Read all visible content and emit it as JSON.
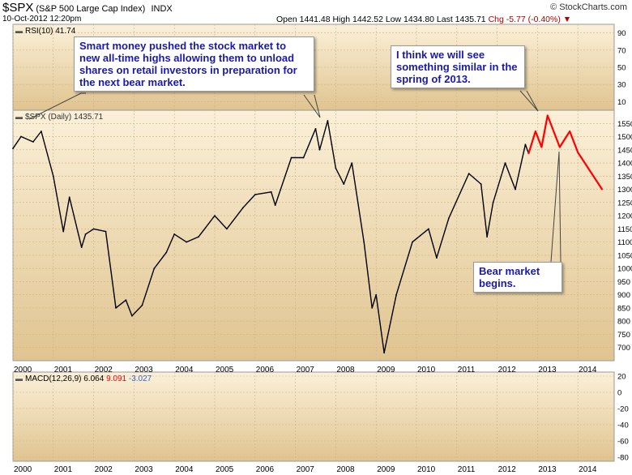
{
  "header": {
    "symbol": "$SPX",
    "index_name": "(S&P 500 Large Cap Index)",
    "exchange": "INDX",
    "datetime": "10-Oct-2012 12:20pm",
    "quote": "Open 1441.48  High 1442.52  Low 1434.80  Last 1435.71",
    "change": "Chg -5.77 (-0.40%)",
    "logo": "© StockCharts.com"
  },
  "annotations": {
    "top_left": "Smart money pushed the stock market to new all-time highs allowing them to unload shares on retail investors in preparation for the next bear market.",
    "top_right": "I think we will see something similar in the spring of 2013.",
    "bottom_right": "Bear market begins."
  },
  "chart_data": [
    {
      "type": "line",
      "panel": "RSI",
      "label": "RSI(10) 41.74",
      "ylim": [
        0,
        100
      ],
      "yticks": [
        10,
        30,
        50,
        70,
        90
      ]
    },
    {
      "type": "line",
      "panel": "price",
      "label": "$SPX (Daily) 1435.71",
      "xlabel": "",
      "ylabel": "",
      "xlim": [
        2000,
        2014.9
      ],
      "ylim": [
        650,
        1600
      ],
      "yticks": [
        700,
        750,
        800,
        850,
        900,
        950,
        1000,
        1050,
        1100,
        1150,
        1200,
        1250,
        1300,
        1350,
        1400,
        1450,
        1500,
        1550
      ],
      "xticks": [
        "2000",
        "2001",
        "2002",
        "2003",
        "2004",
        "2005",
        "2006",
        "2007",
        "2008",
        "2009",
        "2010",
        "2011",
        "2012",
        "2013",
        "2014"
      ],
      "grid": true,
      "series": [
        {
          "color": "#000000",
          "x": [
            2000.0,
            2000.2,
            2000.5,
            2000.7,
            2001.0,
            2001.25,
            2001.4,
            2001.7,
            2001.8,
            2002.0,
            2002.3,
            2002.55,
            2002.8,
            2002.95,
            2003.2,
            2003.5,
            2003.8,
            2004.0,
            2004.3,
            2004.6,
            2005.0,
            2005.3,
            2005.7,
            2006.0,
            2006.4,
            2006.5,
            2006.9,
            2007.2,
            2007.5,
            2007.6,
            2007.8,
            2007.9,
            2008.0,
            2008.2,
            2008.4,
            2008.7,
            2008.9,
            2009.0,
            2009.2,
            2009.5,
            2009.9,
            2010.3,
            2010.5,
            2010.8,
            2011.3,
            2011.6,
            2011.75,
            2011.9,
            2012.2,
            2012.45,
            2012.7,
            2012.78
          ],
          "y": [
            1455,
            1500,
            1480,
            1520,
            1350,
            1140,
            1270,
            1080,
            1130,
            1150,
            1140,
            850,
            880,
            820,
            860,
            1000,
            1060,
            1130,
            1100,
            1120,
            1200,
            1150,
            1230,
            1280,
            1290,
            1240,
            1420,
            1420,
            1530,
            1450,
            1560,
            1470,
            1380,
            1320,
            1400,
            1100,
            850,
            900,
            680,
            900,
            1100,
            1150,
            1040,
            1190,
            1360,
            1320,
            1120,
            1250,
            1400,
            1300,
            1470,
            1436
          ]
        },
        {
          "color": "#ff0000",
          "x": [
            2012.78,
            2012.95,
            2013.1,
            2013.25,
            2013.55,
            2013.8,
            2014.0,
            2014.6
          ],
          "y": [
            1436,
            1520,
            1460,
            1580,
            1460,
            1520,
            1440,
            1300
          ]
        }
      ]
    },
    {
      "type": "line",
      "panel": "MACD",
      "label": "MACD(12,26,9)",
      "values": [
        6.064,
        9.091,
        -3.027
      ],
      "value_colors": [
        "#000000",
        "#ff0000",
        "#3366cc"
      ],
      "ylim": [
        -85,
        25
      ],
      "yticks": [
        20,
        0,
        -20,
        -40,
        -60,
        -80
      ],
      "xticks": [
        "2000",
        "2001",
        "2002",
        "2003",
        "2004",
        "2005",
        "2006",
        "2007",
        "2008",
        "2009",
        "2010",
        "2011",
        "2012",
        "2013",
        "2014"
      ]
    }
  ]
}
